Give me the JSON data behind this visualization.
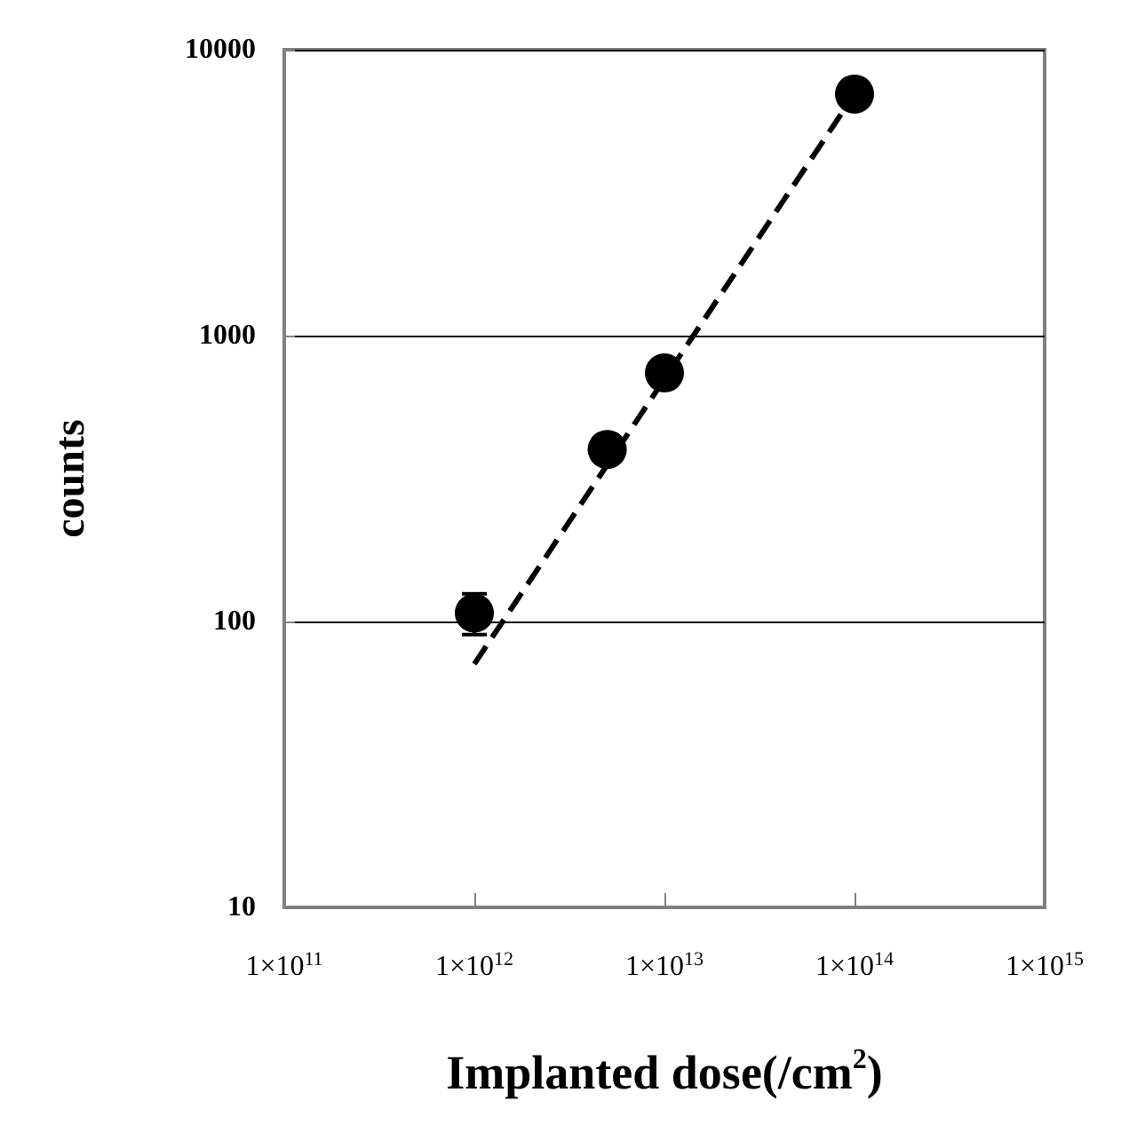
{
  "chart_data": {
    "type": "scatter",
    "xlabel": "Implanted dose(/cm$^{2}$)",
    "ylabel": "counts",
    "log": "xy",
    "grid": "y",
    "xlim": [
      100000000000.0,
      1000000000000000.0
    ],
    "ylim": [
      10,
      10000
    ],
    "xticks": [
      {
        "value": 100000000000.0,
        "label": "1×10$^{11}$"
      },
      {
        "value": 1000000000000.0,
        "label": "1×10$^{12}$"
      },
      {
        "value": 10000000000000.0,
        "label": "1×10$^{13}$"
      },
      {
        "value": 100000000000000.0,
        "label": "1×10$^{14}$"
      },
      {
        "value": 1000000000000000.0,
        "label": "1×10$^{15}$"
      }
    ],
    "yticks": [
      10,
      100,
      1000,
      10000
    ],
    "series": [
      {
        "type": "scatter",
        "color": "#000000",
        "marker": "circle",
        "x": [
          1000000000000.0,
          5000000000000.0,
          10000000000000.0,
          100000000000000.0
        ],
        "values": [
          107,
          400,
          740,
          7000
        ],
        "errors": [
          [
            90,
            125
          ],
          null,
          null,
          null
        ]
      },
      {
        "type": "line",
        "color": "#000000",
        "marker": "none",
        "line_style": "dashed",
        "x": [
          1000000000000.0,
          100000000000000.0
        ],
        "values": [
          71,
          7000
        ]
      }
    ]
  }
}
